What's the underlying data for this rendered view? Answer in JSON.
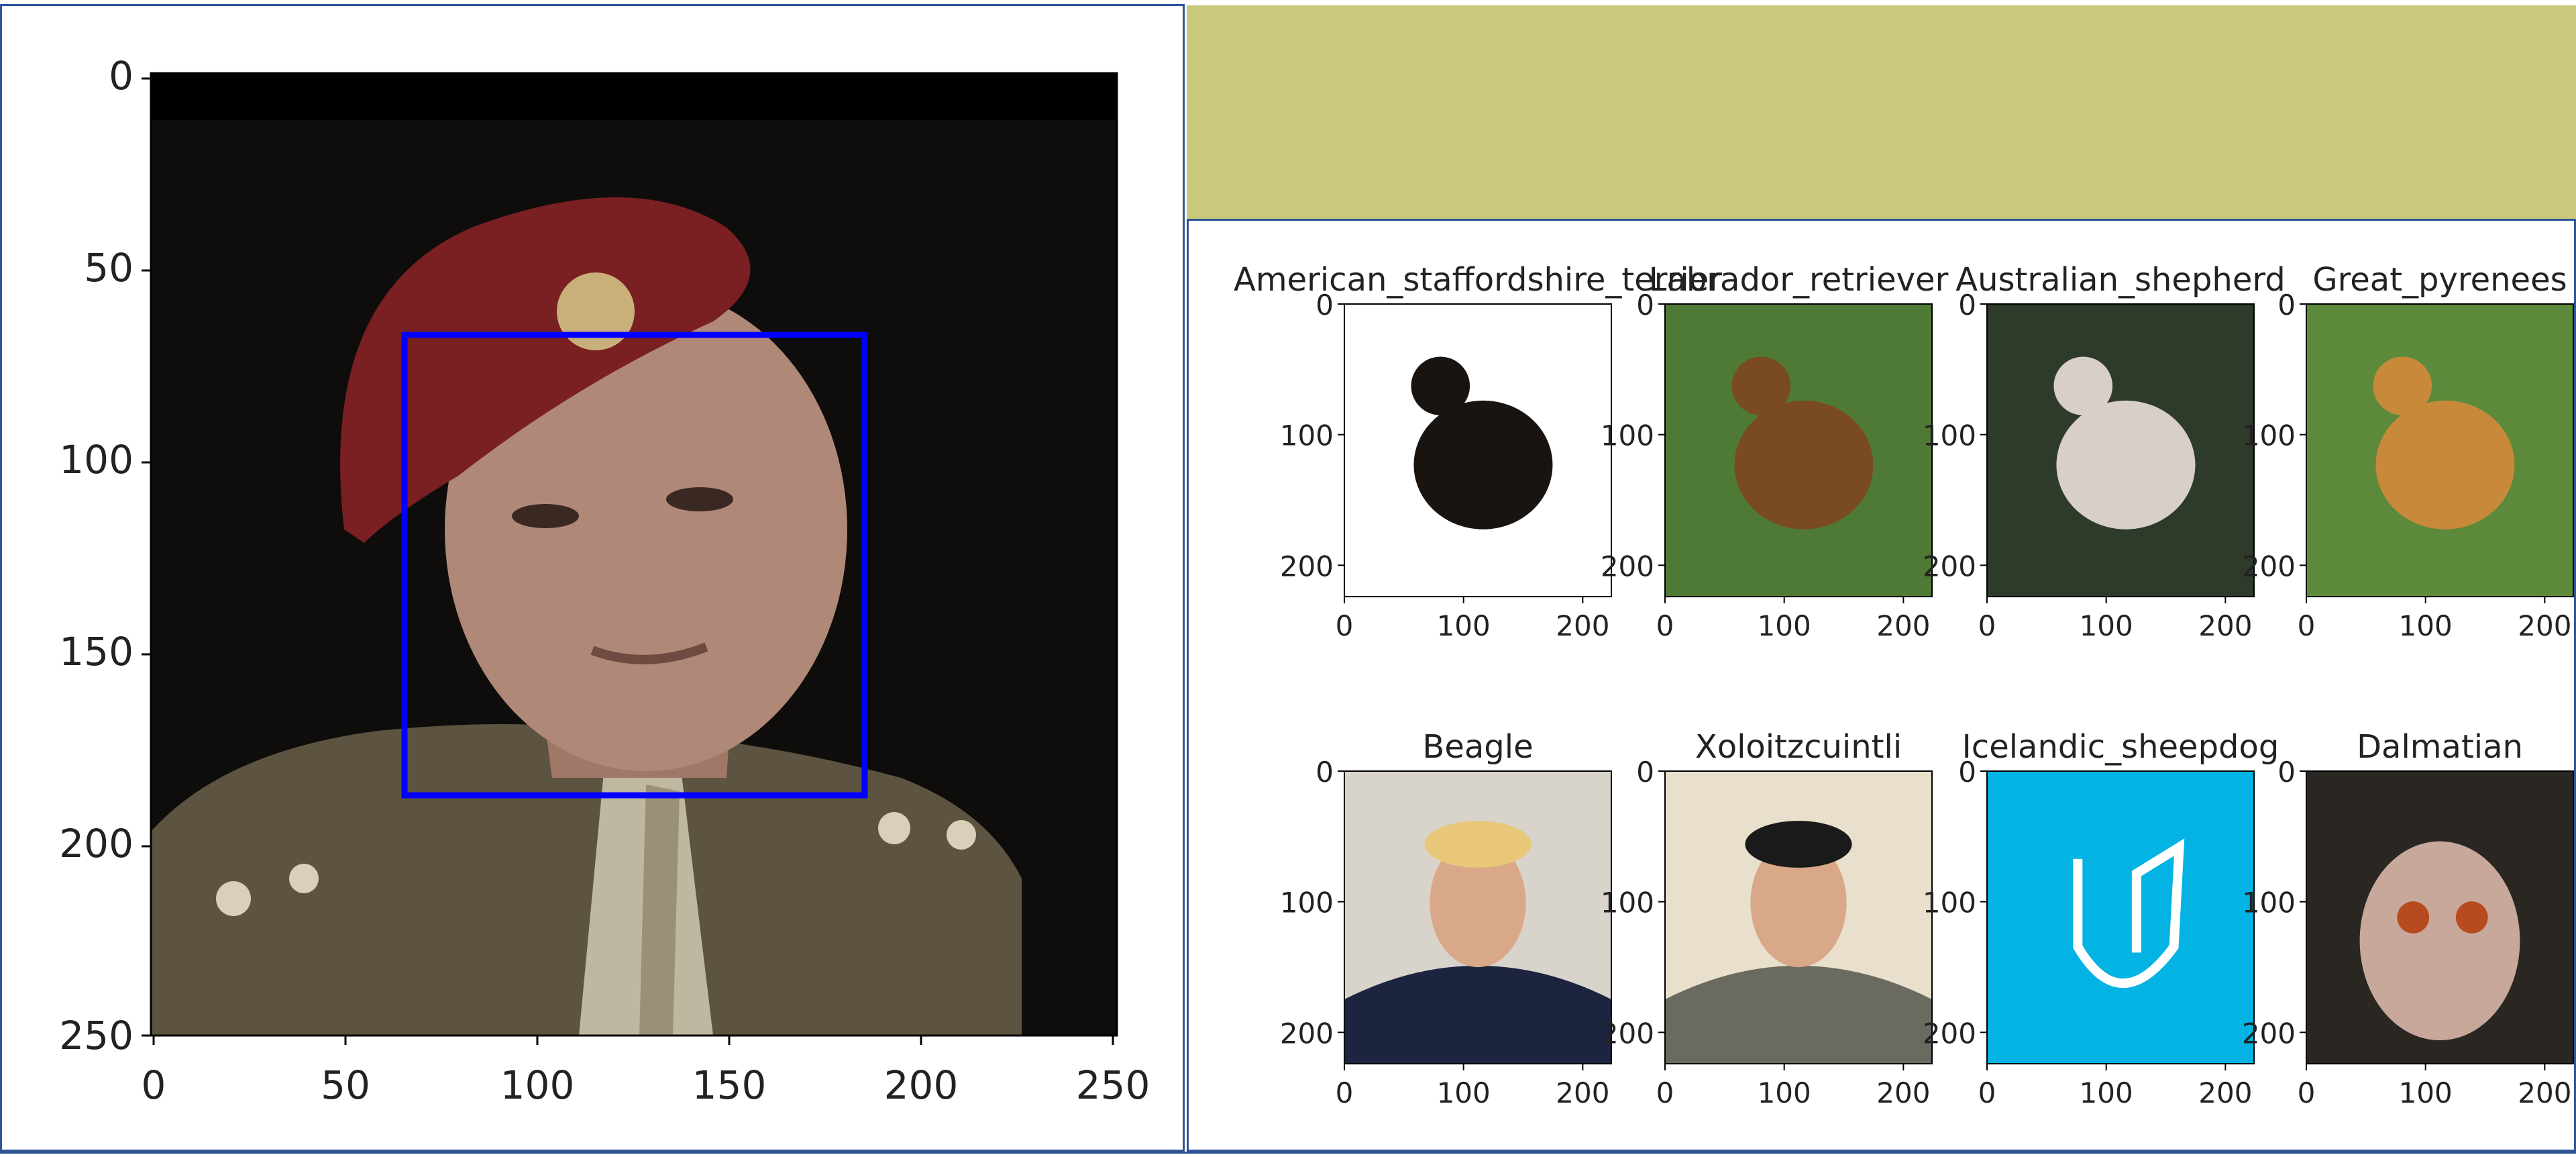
{
  "face_plot": {
    "x_ticks": [
      "0",
      "50",
      "100",
      "150",
      "200",
      "250"
    ],
    "y_ticks": [
      "0",
      "50",
      "100",
      "150",
      "200",
      "250"
    ],
    "box_color": "#0000ff"
  },
  "dog_grid": {
    "items": [
      {
        "title": "American_staffordshire_terrier",
        "subject": "dog-photo"
      },
      {
        "title": "Labrador_retriever",
        "subject": "dog-photo"
      },
      {
        "title": "Australian_shepherd",
        "subject": "dog-photo"
      },
      {
        "title": "Great_pyrenees",
        "subject": "dog-photo"
      },
      {
        "title": "Beagle",
        "subject": "person-portrait"
      },
      {
        "title": "Xoloitzcuintli",
        "subject": "person-portrait"
      },
      {
        "title": "Icelandic_sheepdog",
        "subject": "logo"
      },
      {
        "title": "Dalmatian",
        "subject": "cartoon"
      }
    ],
    "x_ticks": [
      "0",
      "100",
      "200"
    ],
    "y_ticks": [
      "0",
      "100",
      "200"
    ]
  },
  "colors": {
    "frame": "#2f5597",
    "banner": "#c9c87b",
    "logo_bg": "#02b3e4"
  }
}
